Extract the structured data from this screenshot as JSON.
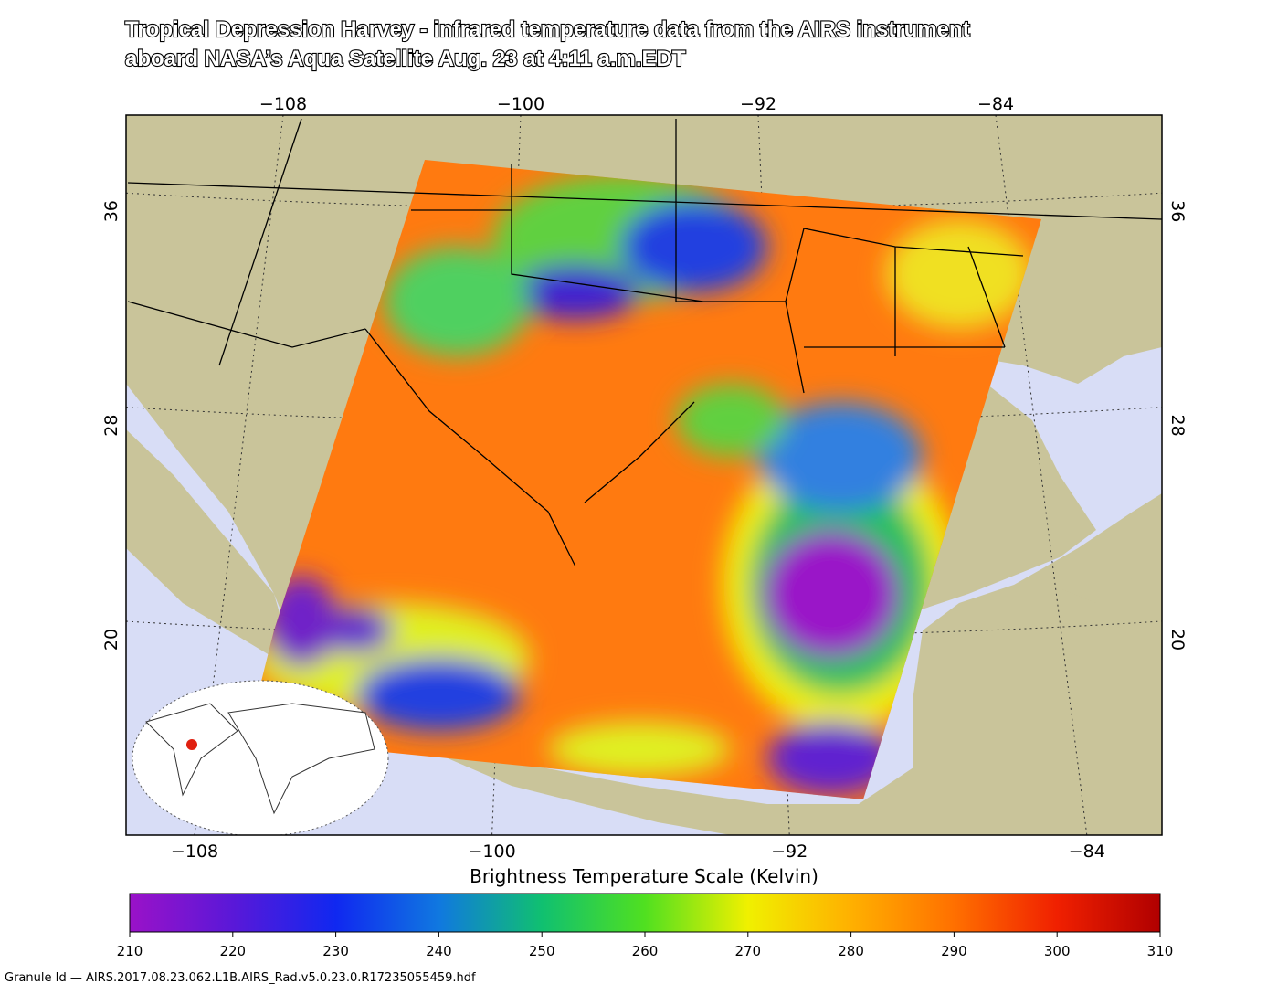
{
  "header": {
    "title_lines": [
      "Tropical Depression Harvey  - infrared temperature data from the AIRS instrument",
      "aboard NASA’s Aqua Satellite Aug. 23 at 4:11 a.m.EDT"
    ]
  },
  "map": {
    "lon_ticks": [
      {
        "value": -108,
        "label": "−108"
      },
      {
        "value": -100,
        "label": "−100"
      },
      {
        "value": -92,
        "label": "−92"
      },
      {
        "value": -84,
        "label": "−84"
      }
    ],
    "lat_ticks": [
      36,
      28,
      20
    ]
  },
  "colorbar": {
    "title": "Brightness Temperature Scale (Kelvin)",
    "range": [
      210,
      310
    ],
    "ticks": [
      210,
      220,
      230,
      240,
      250,
      260,
      270,
      280,
      290,
      300,
      310
    ],
    "colors": [
      "#9a12c8",
      "#5a18d8",
      "#1028f0",
      "#1078e0",
      "#10c070",
      "#50e020",
      "#f0f000",
      "#ffb000",
      "#ff7000",
      "#f02000",
      "#b00000"
    ]
  },
  "footer": {
    "granule": "Granule Id — AIRS.2017.08.23.062.L1B.AIRS_Rad.v5.0.23.0.R17235055459.hdf"
  }
}
